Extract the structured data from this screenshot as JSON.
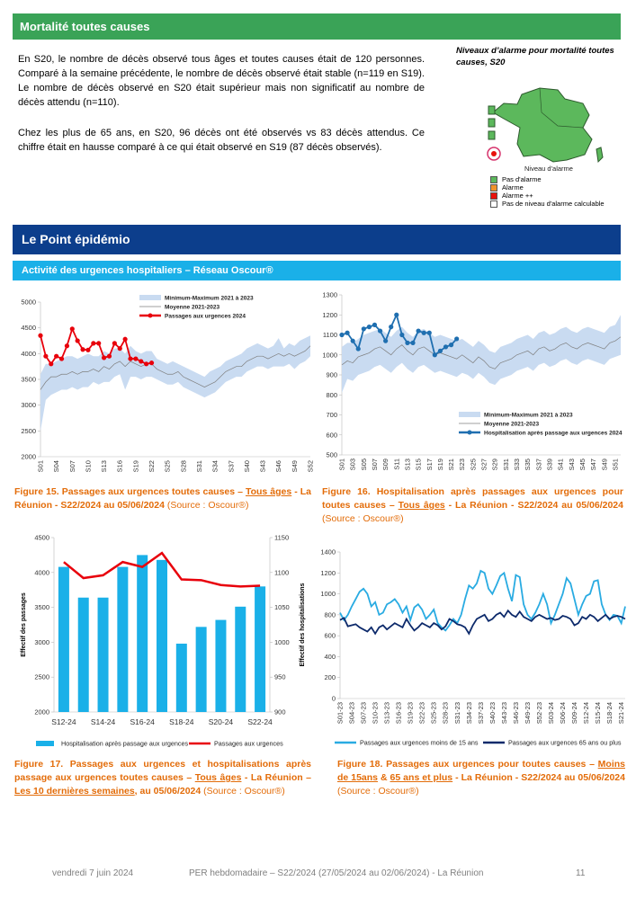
{
  "header": {
    "title": "Mortalité toutes causes"
  },
  "mortality": {
    "paragraphs": [
      "En S20, le nombre de décès observé tous âges et toutes causes était de 120 personnes. Comparé à la semaine précédente, le nombre de décès observé était stable (n=119 en S19). Le nombre de décès observé en S20 était supérieur mais non significatif au nombre de décès attendu (n=110).",
      "Chez les plus de 65 ans, en S20, 96 décès ont été observés vs 83 décès attendus. Ce chiffre était en hausse comparé à ce qui était observé en S19 (87 décès observés)."
    ],
    "map": {
      "title": "Niveaux d’alarme pour mortalité toutes causes, S20",
      "legend_title": "Niveau d'alarme",
      "legend": [
        {
          "label": "Pas d'alarme",
          "color": "#5cb85c"
        },
        {
          "label": "Alarme",
          "color": "#f0932b"
        },
        {
          "label": "Alarme ++",
          "color": "#e8120c"
        },
        {
          "label": "Pas de niveau d'alarme calculable",
          "color": "#ffffff"
        }
      ]
    }
  },
  "section": {
    "title": "Le Point épidémio",
    "subtitle": "Activité des urgences hospitaliers – Réseau Oscour®"
  },
  "chart_data": [
    {
      "type": "line",
      "categories": [
        "S01",
        null,
        null,
        "S04",
        null,
        null,
        "S07",
        null,
        null,
        "S10",
        null,
        null,
        "S13",
        null,
        null,
        "S16",
        null,
        null,
        "S19",
        null,
        null,
        "S22",
        null,
        null,
        "S25",
        null,
        null,
        "S28",
        null,
        null,
        "S31",
        null,
        null,
        "S34",
        null,
        null,
        "S37",
        null,
        null,
        "S40",
        null,
        null,
        "S43",
        null,
        null,
        "S46",
        null,
        null,
        "S49",
        null,
        null,
        "S52"
      ],
      "ylim": [
        2000,
        5000
      ],
      "yticks": [
        2000,
        2500,
        3000,
        3500,
        4000,
        4500,
        5000
      ],
      "series": [
        {
          "name": "Minimum-Maximum 2021 à 2023",
          "color": "#c9dbf1",
          "high": [
            3600,
            3800,
            3800,
            3850,
            3900,
            3950,
            3950,
            3900,
            3950,
            4000,
            3950,
            3950,
            4050,
            4000,
            4100,
            4100,
            4000,
            4150,
            4050,
            4000,
            4050,
            4050,
            3900,
            3850,
            3800,
            3850,
            3800,
            3750,
            3700,
            3650,
            3600,
            3550,
            3650,
            3700,
            3750,
            3850,
            3900,
            3950,
            4000,
            4100,
            4150,
            4200,
            4150,
            4100,
            4150,
            4300,
            4100,
            4200,
            4150,
            4250,
            4300,
            4350
          ],
          "low": [
            2500,
            3100,
            3200,
            3250,
            3300,
            3300,
            3350,
            3300,
            3350,
            3350,
            3450,
            3400,
            3450,
            3450,
            3550,
            3600,
            3300,
            3550,
            3550,
            3500,
            3550,
            3550,
            3500,
            3450,
            3400,
            3400,
            3450,
            3350,
            3300,
            3250,
            3200,
            3150,
            3200,
            3250,
            3350,
            3450,
            3500,
            3550,
            3550,
            3650,
            3700,
            3750,
            3750,
            3700,
            3750,
            3750,
            3750,
            3800,
            3700,
            3800,
            3850,
            3950
          ]
        },
        {
          "name": "Moyenne 2021-2023",
          "color": "#7f7f7f",
          "values": [
            3300,
            3450,
            3550,
            3550,
            3600,
            3600,
            3650,
            3600,
            3650,
            3650,
            3700,
            3650,
            3750,
            3700,
            3800,
            3850,
            3750,
            3850,
            3800,
            3750,
            3800,
            3800,
            3700,
            3650,
            3600,
            3600,
            3650,
            3550,
            3500,
            3450,
            3400,
            3350,
            3400,
            3450,
            3550,
            3650,
            3700,
            3750,
            3750,
            3850,
            3900,
            3950,
            3950,
            3900,
            3950,
            4000,
            3950,
            4000,
            3950,
            4000,
            4050,
            4150
          ]
        },
        {
          "name": "Passages aux urgences 2024",
          "color": "#e8000b",
          "markers": true,
          "values": [
            4350,
            3950,
            3800,
            3950,
            3900,
            4150,
            4480,
            4250,
            4080,
            4070,
            4200,
            4200,
            3920,
            3950,
            4200,
            4100,
            4280,
            3900,
            3900,
            3850,
            3800,
            3820,
            null,
            null,
            null,
            null,
            null,
            null,
            null,
            null,
            null,
            null,
            null,
            null,
            null,
            null,
            null,
            null,
            null,
            null,
            null,
            null,
            null,
            null,
            null,
            null,
            null,
            null,
            null,
            null,
            null,
            null
          ]
        }
      ]
    },
    {
      "type": "line",
      "categories": [
        "S01",
        null,
        "S03",
        null,
        "S05",
        null,
        "S07",
        null,
        "S09",
        null,
        "S11",
        null,
        "S13",
        null,
        "S15",
        null,
        "S17",
        null,
        "S19",
        null,
        "S21",
        null,
        "S23",
        null,
        "S25",
        null,
        "S27",
        null,
        "S29",
        null,
        "S31",
        null,
        "S33",
        null,
        "S35",
        null,
        "S37",
        null,
        "S39",
        null,
        "S41",
        null,
        "S43",
        null,
        "S45",
        null,
        "S47",
        null,
        "S49",
        null,
        "S51",
        null
      ],
      "ylim": [
        500,
        1300
      ],
      "yticks": [
        500,
        600,
        700,
        800,
        900,
        1000,
        1100,
        1200,
        1300
      ],
      "series": [
        {
          "name": "Minimum-Maximum 2021 à 2023",
          "color": "#c9dbf1",
          "high": [
            1040,
            1060,
            1060,
            1080,
            1100,
            1110,
            1120,
            1130,
            1110,
            1090,
            1120,
            1140,
            1110,
            1090,
            1120,
            1130,
            1110,
            1090,
            1100,
            1090,
            1080,
            1070,
            1080,
            1060,
            1040,
            1070,
            1050,
            1020,
            1010,
            1040,
            1050,
            1060,
            1080,
            1090,
            1100,
            1080,
            1110,
            1120,
            1100,
            1110,
            1130,
            1140,
            1120,
            1110,
            1130,
            1140,
            1130,
            1120,
            1110,
            1140,
            1150,
            1200
          ],
          "low": [
            810,
            880,
            870,
            900,
            910,
            920,
            940,
            950,
            930,
            910,
            940,
            960,
            930,
            910,
            940,
            950,
            930,
            910,
            920,
            910,
            900,
            890,
            910,
            900,
            880,
            910,
            890,
            860,
            850,
            880,
            890,
            900,
            920,
            930,
            940,
            920,
            950,
            960,
            940,
            950,
            970,
            980,
            960,
            950,
            970,
            980,
            970,
            960,
            950,
            980,
            990,
            1000
          ]
        },
        {
          "name": "Moyenne 2021-2023",
          "color": "#7f7f7f",
          "values": [
            950,
            970,
            960,
            990,
            1000,
            1010,
            1030,
            1040,
            1020,
            1000,
            1030,
            1050,
            1020,
            1000,
            1030,
            1040,
            1020,
            1000,
            1010,
            1000,
            990,
            980,
            1000,
            980,
            960,
            990,
            970,
            940,
            930,
            960,
            970,
            980,
            1000,
            1010,
            1020,
            1000,
            1030,
            1040,
            1020,
            1030,
            1050,
            1060,
            1040,
            1030,
            1050,
            1060,
            1050,
            1040,
            1030,
            1060,
            1070,
            1090
          ]
        },
        {
          "name": "Hospitalisation après passage aux urgences 2024",
          "color": "#1f6fb0",
          "markers": true,
          "values": [
            1100,
            1110,
            1070,
            1030,
            1130,
            1140,
            1150,
            1120,
            1070,
            1140,
            1200,
            1100,
            1060,
            1060,
            1120,
            1110,
            1110,
            1000,
            1020,
            1040,
            1050,
            1080,
            null,
            null,
            null,
            null,
            null,
            null,
            null,
            null,
            null,
            null,
            null,
            null,
            null,
            null,
            null,
            null,
            null,
            null,
            null,
            null,
            null,
            null,
            null,
            null,
            null,
            null,
            null,
            null,
            null,
            null
          ]
        }
      ]
    },
    {
      "type": "bar",
      "categories": [
        "S12-24",
        null,
        "S14-24",
        null,
        "S16-24",
        null,
        "S18-24",
        null,
        "S20-24",
        null,
        "S22-24"
      ],
      "ylabel": "Effectif des passages",
      "y2label": "Effectif des hospitalisations",
      "ylim": [
        2000,
        4500
      ],
      "yticks": [
        2000,
        2500,
        3000,
        3500,
        4000,
        4500
      ],
      "y2lim": [
        900,
        1150
      ],
      "y2ticks": [
        900,
        950,
        1000,
        1050,
        1100,
        1150
      ],
      "series": [
        {
          "name": "Hospitalisation après passage aux urgences",
          "color": "#1ab0e8",
          "type": "bar",
          "axis": "y2",
          "values": [
            1108,
            1064,
            1064,
            1108,
            1125,
            1118,
            998,
            1022,
            1032,
            1051,
            1080
          ]
        },
        {
          "name": "Passages aux urgences",
          "color": "#e8000b",
          "type": "line",
          "values": [
            4150,
            3920,
            3960,
            4150,
            4080,
            4280,
            3900,
            3890,
            3820,
            3800,
            3810
          ]
        }
      ]
    },
    {
      "type": "line",
      "categories": [
        "S01-23",
        null,
        null,
        "S04-23",
        null,
        null,
        "S07-23",
        null,
        null,
        "S10-23",
        null,
        null,
        "S13-23",
        null,
        null,
        "S16-23",
        null,
        null,
        "S19-23",
        null,
        null,
        "S22-23",
        null,
        null,
        "S25-23",
        null,
        null,
        "S28-23",
        null,
        null,
        "S31-23",
        null,
        null,
        "S34-23",
        null,
        null,
        "S37-23",
        null,
        null,
        "S40-23",
        null,
        null,
        "S43-23",
        null,
        null,
        "S46-23",
        null,
        null,
        "S49-23",
        null,
        null,
        "S52-23",
        null,
        null,
        "S03-24",
        null,
        null,
        "S06-24",
        null,
        null,
        "S09-24",
        null,
        null,
        "S12-24",
        null,
        null,
        "S15-24",
        null,
        null,
        "S18-24",
        null,
        null,
        "S21-24",
        null
      ],
      "ylim": [
        0,
        1400
      ],
      "yticks": [
        0,
        200,
        400,
        600,
        800,
        1000,
        1200,
        1400
      ],
      "series": [
        {
          "name": "Passages aux urgences moins de 15 ans",
          "color": "#29abe2",
          "values": [
            820,
            750,
            800,
            880,
            950,
            1020,
            1050,
            1000,
            880,
            920,
            800,
            820,
            900,
            920,
            950,
            900,
            820,
            880,
            750,
            870,
            900,
            850,
            760,
            800,
            850,
            720,
            680,
            650,
            700,
            760,
            720,
            800,
            950,
            1080,
            1050,
            1100,
            1220,
            1200,
            1050,
            1000,
            1080,
            1170,
            1200,
            1050,
            930,
            1180,
            1160,
            900,
            800,
            760,
            820,
            900,
            1000,
            900,
            720,
            800,
            900,
            1000,
            1150,
            1100,
            950,
            800,
            900,
            980,
            1000,
            1120,
            1130,
            900,
            800,
            750,
            800,
            790,
            720,
            880
          ]
        },
        {
          "name": "Passages aux urgences 65 ans ou plus",
          "color": "#0d2a6b",
          "values": [
            750,
            770,
            690,
            700,
            710,
            680,
            660,
            640,
            680,
            620,
            680,
            700,
            660,
            690,
            720,
            700,
            680,
            760,
            700,
            650,
            680,
            720,
            700,
            680,
            720,
            700,
            660,
            690,
            760,
            740,
            710,
            700,
            680,
            620,
            700,
            760,
            780,
            800,
            740,
            760,
            800,
            820,
            780,
            840,
            800,
            780,
            830,
            780,
            760,
            740,
            780,
            800,
            780,
            760,
            770,
            750,
            760,
            790,
            780,
            760,
            700,
            720,
            780,
            760,
            800,
            780,
            740,
            770,
            800,
            760,
            780,
            790,
            780,
            760
          ]
        }
      ]
    }
  ],
  "captions": [
    [
      "Figure 15. Passages aux urgences toutes causes – ",
      "Tous âges",
      " - La Réunion - S22/2024 au 05/06/2024 ",
      "(Source : Oscour®)"
    ],
    [
      "Figure 16. Hospitalisation après passages aux urgences pour toutes causes – ",
      "Tous âges",
      " - La Réunion - S22/2024 au 05/06/2024 ",
      "(Source : Oscour®)"
    ],
    [
      "Figure 17. Passages aux urgences et hospitalisations après passage aux urgences toutes causes – ",
      "Tous âges",
      " - La Réunion – ",
      "Les 10 dernières semaines",
      ", au 05/06/2024 ",
      "(Source : Oscour®)"
    ],
    [
      "Figure 18. Passages aux urgences pour toutes causes – ",
      "Moins de 15ans",
      " & ",
      "65 ans et plus",
      " - La Réunion - S22/2024 au 05/06/2024 ",
      "(Source : Oscour®)"
    ]
  ],
  "footer": {
    "date": "vendredi 7 juin 2024",
    "title": "PER hebdomadaire – S22/2024 (27/05/2024 au 02/06/2024)  - La Réunion",
    "page": "11"
  }
}
